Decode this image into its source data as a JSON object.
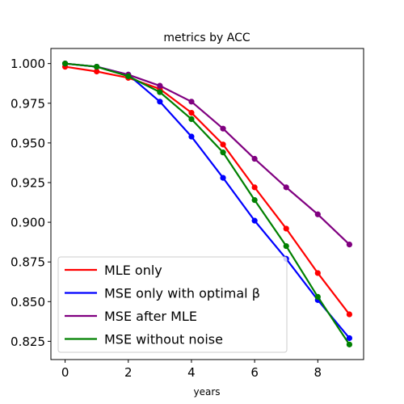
{
  "chart_data": {
    "type": "line",
    "title": "metrics by ACC",
    "xlabel": "years",
    "ylabel": "",
    "x": [
      0,
      1,
      2,
      3,
      4,
      5,
      6,
      7,
      8,
      9
    ],
    "xlim": [
      -0.45,
      9.45
    ],
    "ylim": [
      0.8135,
      1.0095
    ],
    "xticks": [
      0,
      2,
      4,
      6,
      8
    ],
    "yticks": [
      0.825,
      0.85,
      0.875,
      0.9,
      0.925,
      0.95,
      0.975,
      1.0
    ],
    "xtick_labels": [
      "0",
      "2",
      "4",
      "6",
      "8"
    ],
    "ytick_labels": [
      "0.825",
      "0.850",
      "0.875",
      "0.900",
      "0.925",
      "0.950",
      "0.975",
      "1.000"
    ],
    "grid": false,
    "legend_position": "lower-left",
    "series": [
      {
        "name": "MLE only",
        "color": "#ff0000",
        "values": [
          0.998,
          0.995,
          0.991,
          0.984,
          0.969,
          0.949,
          0.922,
          0.896,
          0.868,
          0.842
        ]
      },
      {
        "name": "MSE only with optimal β",
        "color": "#0000ff",
        "values": [
          1.0,
          0.998,
          0.993,
          0.976,
          0.954,
          0.928,
          0.901,
          0.877,
          0.851,
          0.827
        ]
      },
      {
        "name": "MSE after MLE",
        "color": "#800080",
        "values": [
          1.0,
          0.998,
          0.993,
          0.986,
          0.976,
          0.959,
          0.94,
          0.922,
          0.905,
          0.886
        ]
      },
      {
        "name": "MSE without noise",
        "color": "#008000",
        "values": [
          1.0,
          0.998,
          0.992,
          0.982,
          0.965,
          0.944,
          0.914,
          0.885,
          0.853,
          0.823
        ]
      }
    ]
  }
}
